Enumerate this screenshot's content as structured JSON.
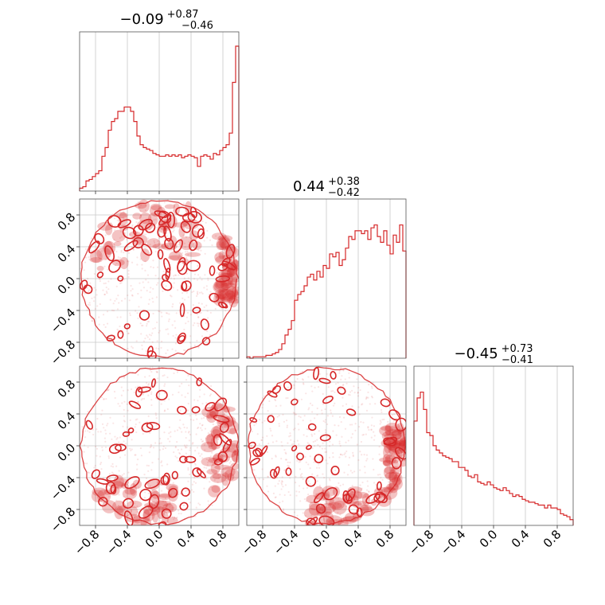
{
  "chart_data": {
    "type": "corner",
    "variables": [
      "",
      "",
      ""
    ],
    "color": "#d62728",
    "axis_range": [
      -1.0,
      1.0
    ],
    "tick_values": [
      -0.8,
      -0.4,
      0.0,
      0.4,
      0.8
    ],
    "tick_labels": [
      "−0.8",
      "−0.4",
      "0.0",
      "0.4",
      "0.8"
    ],
    "grid": true,
    "titles": [
      {
        "median": "−0.09",
        "plus": "+0.87",
        "minus": "−0.46"
      },
      {
        "median": "0.44",
        "plus": "+0.38",
        "minus": "−0.42"
      },
      {
        "median": "−0.45",
        "plus": "+0.73",
        "minus": "−0.41"
      }
    ],
    "histograms": [
      {
        "bin_range": [
          -1.0,
          1.0
        ],
        "counts": [
          2,
          3,
          7,
          8,
          10,
          12,
          14,
          24,
          30,
          42,
          48,
          50,
          55,
          55,
          58,
          58,
          55,
          48,
          38,
          32,
          30,
          29,
          28,
          26,
          25,
          24,
          24,
          25,
          24,
          25,
          24,
          25,
          23,
          24,
          25,
          24,
          23,
          17,
          24,
          25,
          24,
          22,
          26,
          25,
          28,
          30,
          32,
          40,
          75,
          100
        ]
      },
      {
        "bin_range": [
          -1.0,
          1.0
        ],
        "counts": [
          1,
          0,
          1,
          1,
          1,
          1,
          2,
          2,
          3,
          4,
          6,
          10,
          16,
          20,
          26,
          40,
          44,
          46,
          50,
          56,
          58,
          54,
          60,
          56,
          64,
          62,
          72,
          70,
          73,
          64,
          68,
          76,
          84,
          82,
          88,
          88,
          86,
          88,
          82,
          90,
          92,
          84,
          80,
          88,
          78,
          72,
          85,
          80,
          92,
          74
        ]
      },
      {
        "bin_range": [
          -1.0,
          1.0
        ],
        "counts": [
          72,
          88,
          92,
          80,
          64,
          62,
          55,
          52,
          50,
          48,
          47,
          46,
          44,
          44,
          40,
          40,
          38,
          34,
          33,
          35,
          30,
          29,
          28,
          30,
          28,
          26,
          25,
          24,
          26,
          24,
          22,
          20,
          21,
          20,
          18,
          17,
          16,
          16,
          15,
          14,
          14,
          12,
          14,
          12,
          12,
          11,
          8,
          7,
          6,
          4
        ]
      }
    ],
    "hist_ymax": 100,
    "pairs": [
      {
        "row": 1,
        "col": 0,
        "x_var": 0,
        "y_var": 1,
        "dense_regions": [
          {
            "x": [
              -0.85,
              0.5
            ],
            "y": [
              0.1,
              1.0
            ]
          },
          {
            "x": [
              0.75,
              1.0
            ],
            "y": [
              -0.3,
              0.6
            ]
          }
        ],
        "support": "disk"
      },
      {
        "row": 2,
        "col": 0,
        "x_var": 0,
        "y_var": 2,
        "dense_regions": [
          {
            "x": [
              -0.9,
              0.2
            ],
            "y": [
              -1.0,
              -0.45
            ]
          },
          {
            "x": [
              0.6,
              1.0
            ],
            "y": [
              -0.8,
              0.6
            ]
          }
        ],
        "support": "disk"
      },
      {
        "row": 2,
        "col": 1,
        "x_var": 1,
        "y_var": 2,
        "dense_regions": [
          {
            "x": [
              -0.2,
              0.9
            ],
            "y": [
              -1.0,
              -0.55
            ]
          },
          {
            "x": [
              0.75,
              1.0
            ],
            "y": [
              -0.6,
              0.3
            ]
          }
        ],
        "support": "disk"
      }
    ]
  }
}
